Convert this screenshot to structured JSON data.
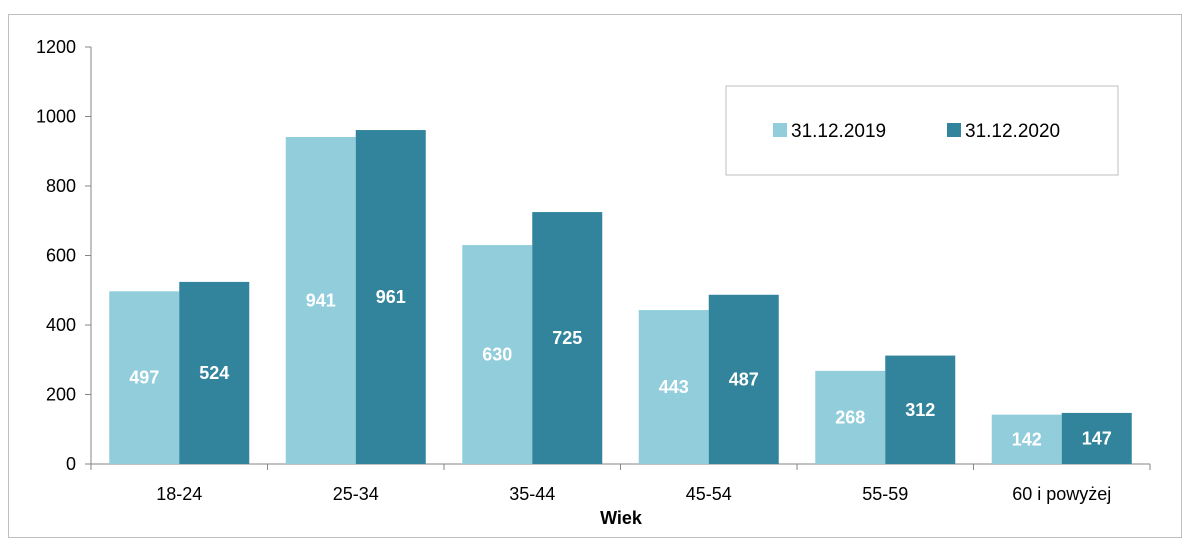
{
  "chart_data": {
    "type": "bar",
    "categories": [
      "18-24",
      "25-34",
      "35-44",
      "45-54",
      "55-59",
      "60 i powyżej"
    ],
    "series": [
      {
        "name": "31.12.2019",
        "values": [
          497,
          941,
          630,
          443,
          268,
          142
        ],
        "color": "#92cddc"
      },
      {
        "name": "31.12.2020",
        "values": [
          524,
          961,
          725,
          487,
          312,
          147
        ],
        "color": "#31849b"
      }
    ],
    "xlabel": "Wiek",
    "ylabel": "",
    "ylim": [
      0,
      1200
    ],
    "yticks": [
      0,
      200,
      400,
      600,
      800,
      1000,
      1200
    ],
    "grid": false,
    "legend_position": "top-right",
    "data_labels": true
  }
}
